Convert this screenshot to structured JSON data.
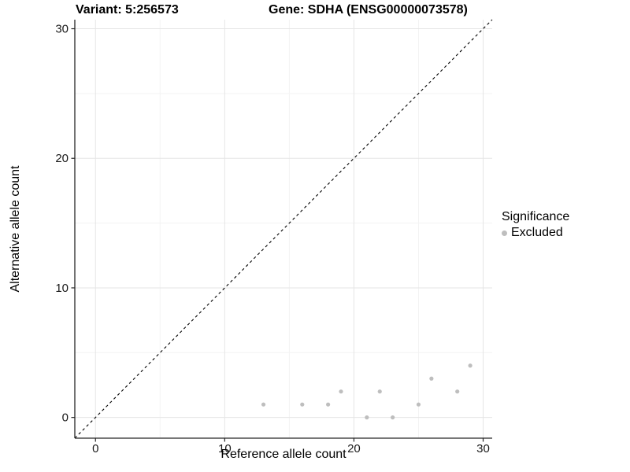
{
  "chart_data": {
    "type": "scatter",
    "titles": {
      "variant": "Variant: 5:256573",
      "gene": "Gene: SDHA (ENSG00000073578)"
    },
    "xlabel": "Reference allele count",
    "ylabel": "Alternative allele count",
    "xlim": [
      -1.6,
      30.7
    ],
    "ylim": [
      -1.6,
      30.7
    ],
    "xticks": [
      0,
      10,
      20,
      30
    ],
    "yticks": [
      0,
      10,
      20,
      30
    ],
    "xticks_minor": [
      5,
      15,
      25
    ],
    "yticks_minor": [
      5,
      15,
      25
    ],
    "grid": "major+minor",
    "identity_line": {
      "style": "dashed",
      "color": "#000000",
      "slope": 1,
      "intercept": 0
    },
    "series": [
      {
        "name": "Excluded",
        "color": "#bebebe",
        "points": [
          [
            13,
            1
          ],
          [
            16,
            1
          ],
          [
            18,
            1
          ],
          [
            19,
            2
          ],
          [
            21,
            0
          ],
          [
            22,
            2
          ],
          [
            23,
            0
          ],
          [
            25,
            1
          ],
          [
            26,
            3
          ],
          [
            28,
            2
          ],
          [
            29,
            4
          ]
        ]
      }
    ],
    "legend": {
      "title": "Significance",
      "position": "right",
      "items": [
        {
          "label": "Excluded",
          "color": "#bebebe"
        }
      ]
    }
  }
}
